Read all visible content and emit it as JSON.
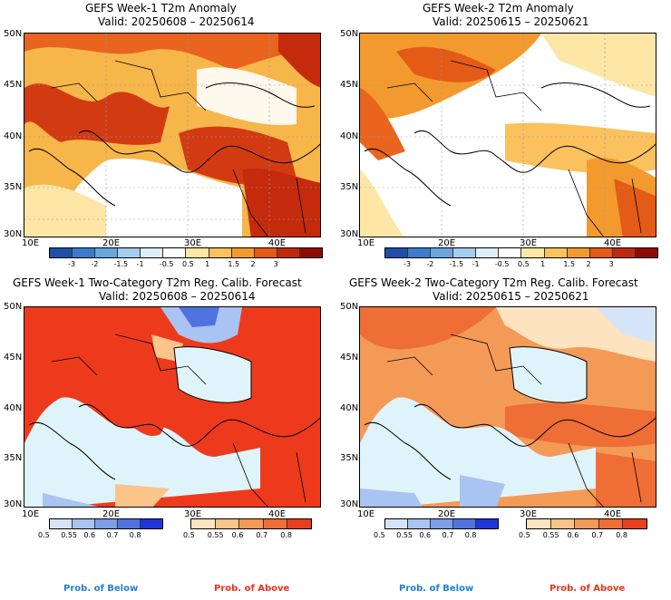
{
  "panels": [
    {
      "title": "GEFS Week-1 T2m Anomaly",
      "valid": "Valid: 20250608 – 20250614"
    },
    {
      "title": "GEFS Week-2 T2m Anomaly",
      "valid": "Valid: 20250615 – 20250621"
    },
    {
      "title": "GEFS Week-1 Two-Category T2m Reg. Calib. Forecast",
      "valid": "Valid: 20250608 – 20250614"
    },
    {
      "title": "GEFS Week-2 Two-Category T2m Reg. Calib. Forecast",
      "valid": "Valid: 20250615 – 20250621"
    }
  ],
  "lat_labels": [
    "50N",
    "45N",
    "40N",
    "35N",
    "30N"
  ],
  "lon_labels": [
    "10E",
    "20E",
    "30E",
    "40E"
  ],
  "anomaly_colorbar": {
    "ticks": [
      "-3",
      "-2",
      "-1.5",
      "-1",
      "-0.5",
      "0.5",
      "1",
      "1.5",
      "2",
      "3"
    ],
    "colors": [
      "#1f4fa8",
      "#3d7cc9",
      "#6aa5dc",
      "#a3cdee",
      "#dceefa",
      "#ffffff",
      "#fde6a6",
      "#fbc15e",
      "#f39a2e",
      "#e35b16",
      "#c02a0c",
      "#8e0c05"
    ]
  },
  "prob_colorbar": {
    "below_ticks": [
      "0.5",
      "0.55",
      "0.6",
      "0.7",
      "0.8"
    ],
    "above_ticks": [
      "0.5",
      "0.55",
      "0.6",
      "0.7",
      "0.8"
    ],
    "below_colors": [
      "#d6e4fa",
      "#a9c3f2",
      "#7d9ee8",
      "#4f74e0",
      "#1f36d8"
    ],
    "above_colors": [
      "#fde3bf",
      "#fbc488",
      "#f49a57",
      "#ee6e35",
      "#e8401f"
    ]
  },
  "footer": {
    "below": "Prob. of Below",
    "above": "Prob. of Above"
  }
}
